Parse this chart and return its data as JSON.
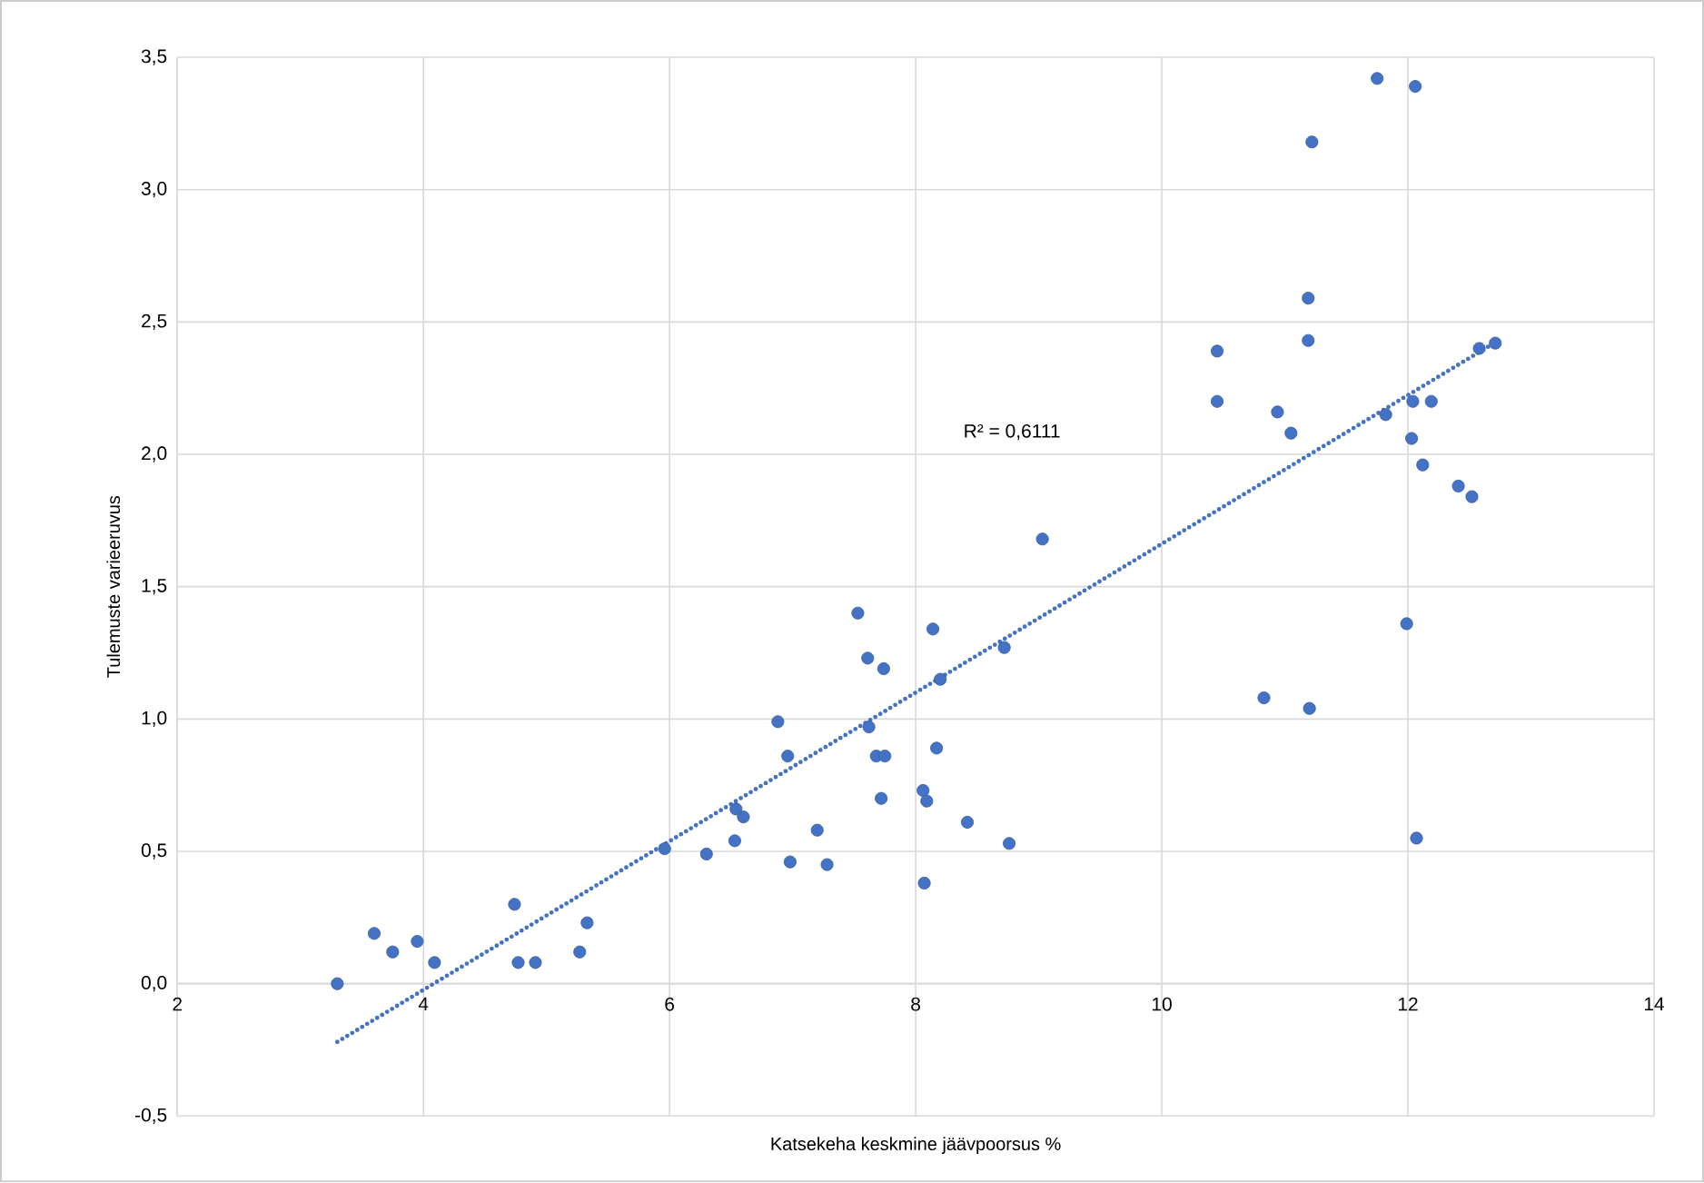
{
  "chart_data": {
    "type": "scatter",
    "xlabel": "Katsekeha keskmine jäävpoorsus %",
    "ylabel": "Tulemuste varieeruvus",
    "xlim": [
      2,
      14
    ],
    "xticks": [
      2,
      4,
      6,
      8,
      10,
      12,
      14
    ],
    "ylim": [
      -0.5,
      3.5
    ],
    "yticks": [
      {
        "value": -0.5,
        "label": "-0,5"
      },
      {
        "value": 0,
        "label": "0,0"
      },
      {
        "value": 0.5,
        "label": "0,5"
      },
      {
        "value": 1,
        "label": "1,0"
      },
      {
        "value": 1.5,
        "label": "1,5"
      },
      {
        "value": 2,
        "label": "2,0"
      },
      {
        "value": 2.5,
        "label": "2,5"
      },
      {
        "value": 3,
        "label": "3,0"
      },
      {
        "value": 3.5,
        "label": "3,5"
      }
    ],
    "grid": true,
    "marker": "circle",
    "annotations": [
      "R² = 0,6111"
    ],
    "series": [
      {
        "color": "#4472c4",
        "x": [
          3.3,
          3.6,
          3.75,
          3.95,
          4.09,
          4.74,
          4.77,
          4.91,
          5.27,
          5.33,
          5.96,
          6.3,
          6.53,
          6.54,
          6.6,
          6.88,
          6.96,
          6.98,
          7.2,
          7.28,
          7.53,
          7.61,
          7.62,
          7.74,
          7.68,
          7.75,
          7.72,
          8.06,
          8.09,
          8.07,
          8.14,
          8.17,
          8.2,
          8.42,
          8.72,
          8.76,
          9.03,
          10.45,
          10.45,
          10.94,
          11.05,
          11.19,
          11.19,
          11.22,
          11.75,
          12.06,
          11.82,
          12.04,
          12.19,
          12.03,
          12.12,
          12.58,
          12.71,
          12.41,
          12.52,
          11.99,
          10.83,
          11.2,
          12.07
        ],
        "values": [
          0.0,
          0.19,
          0.12,
          0.16,
          0.08,
          0.3,
          0.08,
          0.08,
          0.12,
          0.23,
          0.51,
          0.49,
          0.54,
          0.66,
          0.63,
          0.99,
          0.86,
          0.46,
          0.58,
          0.45,
          1.4,
          1.23,
          0.97,
          1.19,
          0.86,
          0.86,
          0.7,
          0.73,
          0.69,
          0.38,
          1.34,
          0.89,
          1.15,
          0.61,
          1.27,
          0.53,
          1.68,
          2.39,
          2.2,
          2.16,
          2.08,
          2.59,
          2.43,
          3.18,
          3.42,
          3.39,
          2.15,
          2.2,
          2.2,
          2.06,
          1.96,
          2.4,
          2.42,
          1.88,
          1.84,
          1.36,
          1.08,
          1.04,
          0.55
        ]
      },
      {
        "type": "line",
        "color": "#4472c4",
        "line_style": "dotted",
        "marker": "none",
        "x": [
          3.3,
          12.7
        ],
        "values": [
          -0.22,
          2.42
        ]
      }
    ]
  }
}
